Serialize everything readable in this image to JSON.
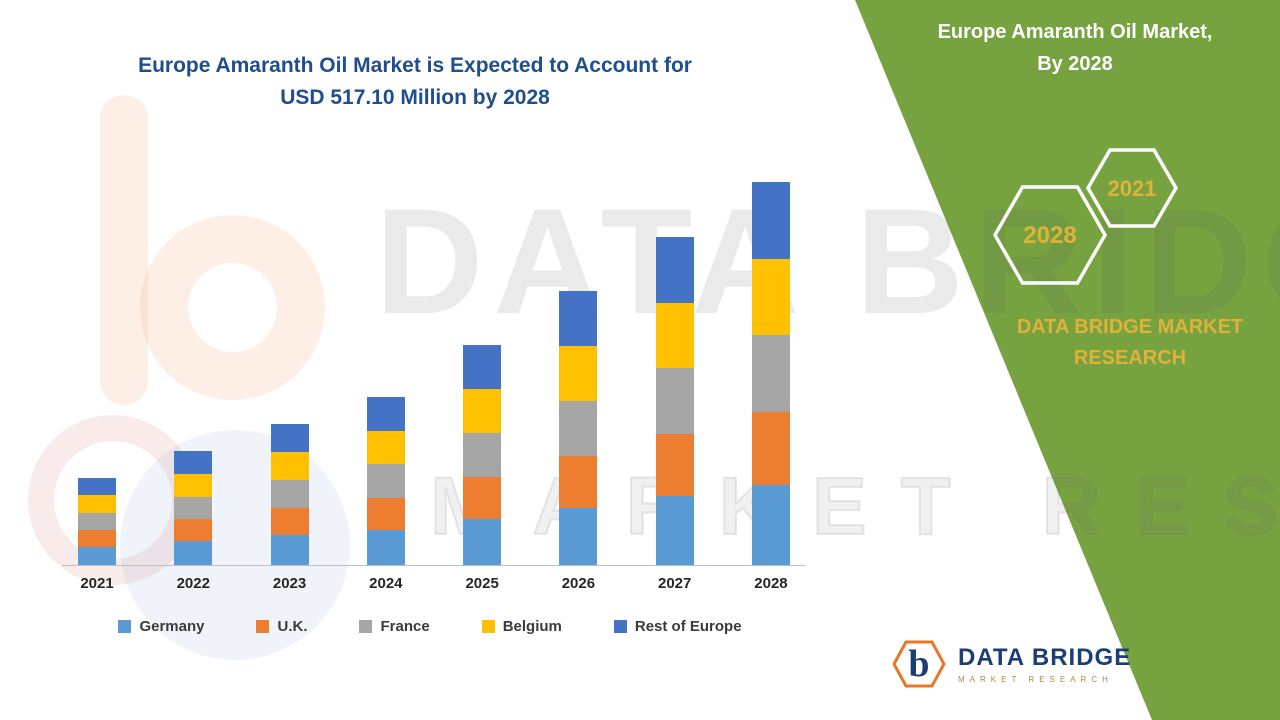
{
  "header": {
    "title_line1": "Europe Amaranth Oil Market is Expected to Account for",
    "title_line2": "USD 517.10 Million by 2028"
  },
  "side_panel": {
    "title_line1": "Europe Amaranth Oil Market,",
    "title_line2": "By 2028",
    "hexagon_year_top": "2021",
    "hexagon_year_bottom": "2028",
    "brand_text": "DATA BRIDGE MARKET RESEARCH",
    "green_color": "#76a240",
    "gold_color": "#e0b23a"
  },
  "watermark": {
    "line1": "DATA BRIDGE",
    "line2": "MARKET RESEARCH"
  },
  "footer_logo": {
    "monogram": "b",
    "name": "DATA BRIDGE",
    "tagline": "MARKET RESEARCH",
    "hex_color": "#e87722",
    "navy_color": "#1b3f75"
  },
  "chart_data": {
    "type": "bar",
    "stacked": true,
    "title": "Europe Amaranth Oil Market is Expected to Account for USD 517.10 Million by 2028",
    "unit": "USD Million",
    "categories": [
      "2021",
      "2022",
      "2023",
      "2024",
      "2025",
      "2026",
      "2027",
      "2028"
    ],
    "series": [
      {
        "name": "Germany",
        "color": "#5B9BD5",
        "values": [
          24.8,
          32.3,
          40.1,
          47.7,
          62.6,
          77.7,
          93.0,
          108.6
        ]
      },
      {
        "name": "U.K.",
        "color": "#ED7D31",
        "values": [
          22.4,
          29.3,
          36.3,
          43.1,
          56.6,
          70.3,
          84.2,
          98.2
        ]
      },
      {
        "name": "France",
        "color": "#A5A5A5",
        "values": [
          23.6,
          30.8,
          38.2,
          45.4,
          59.6,
          74.0,
          88.6,
          103.4
        ]
      },
      {
        "name": "Belgium",
        "color": "#FFC000",
        "values": [
          23.6,
          30.8,
          38.2,
          45.4,
          59.6,
          74.0,
          88.6,
          103.4
        ]
      },
      {
        "name": "Rest of Europe",
        "color": "#4472C4",
        "values": [
          23.6,
          30.8,
          38.2,
          45.4,
          59.6,
          74.0,
          88.6,
          103.5
        ]
      }
    ],
    "totals": [
      118.0,
      154.0,
      191.0,
      227.0,
      298.0,
      370.0,
      443.0,
      517.1
    ],
    "ylim": [
      0,
      560
    ],
    "grid": false,
    "legend_position": "bottom"
  }
}
